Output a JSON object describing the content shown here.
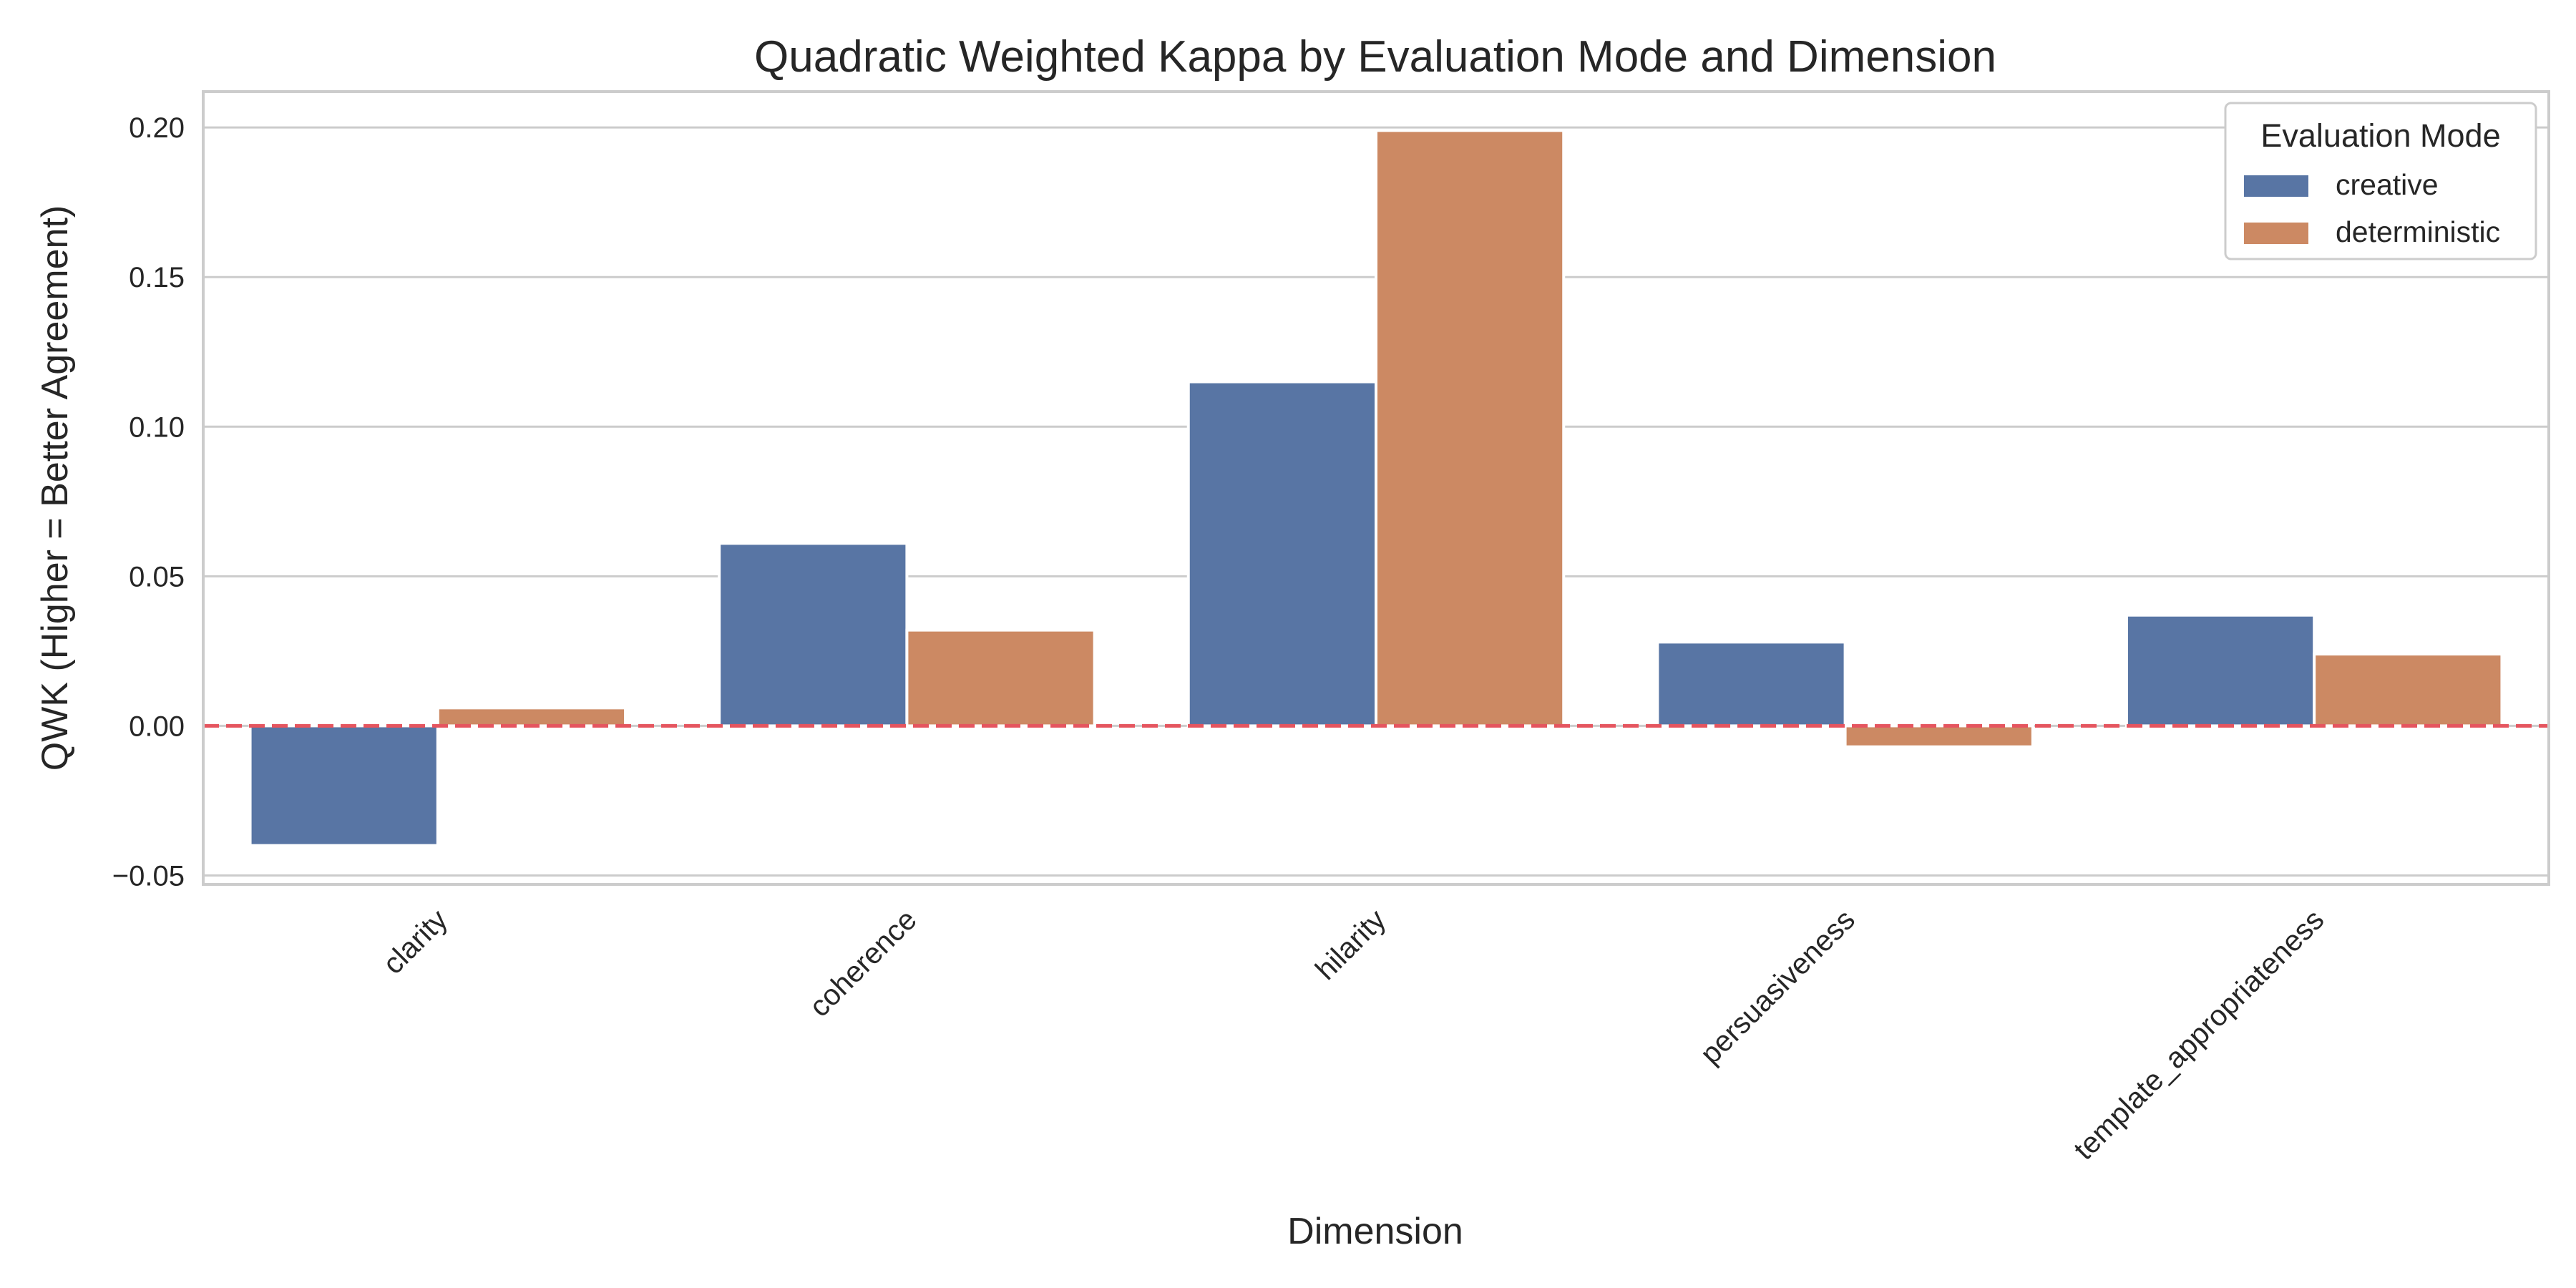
{
  "chart_data": {
    "type": "bar",
    "title": "Quadratic Weighted Kappa by Evaluation Mode and Dimension",
    "xlabel": "Dimension",
    "ylabel": "QWK (Higher = Better Agreement)",
    "categories": [
      "clarity",
      "coherence",
      "hilarity",
      "persuasiveness",
      "template_appropriateness"
    ],
    "series": [
      {
        "name": "creative",
        "color": "#5875a4",
        "values": [
          -0.04,
          0.061,
          0.115,
          0.028,
          0.037
        ]
      },
      {
        "name": "deterministic",
        "color": "#cc8963",
        "values": [
          0.006,
          0.032,
          0.199,
          -0.007,
          0.024
        ]
      }
    ],
    "ylim": [
      -0.053,
      0.212
    ],
    "yticks": [
      -0.05,
      0.0,
      0.05,
      0.1,
      0.15,
      0.2
    ],
    "ytick_labels": [
      "−0.05",
      "0.00",
      "0.05",
      "0.10",
      "0.15",
      "0.20"
    ],
    "reference_line": {
      "y": 0.0,
      "style": "dashed",
      "color": "#e5555f"
    },
    "grid": "horizontal",
    "legend": {
      "title": "Evaluation Mode",
      "placement": "top-right"
    }
  }
}
